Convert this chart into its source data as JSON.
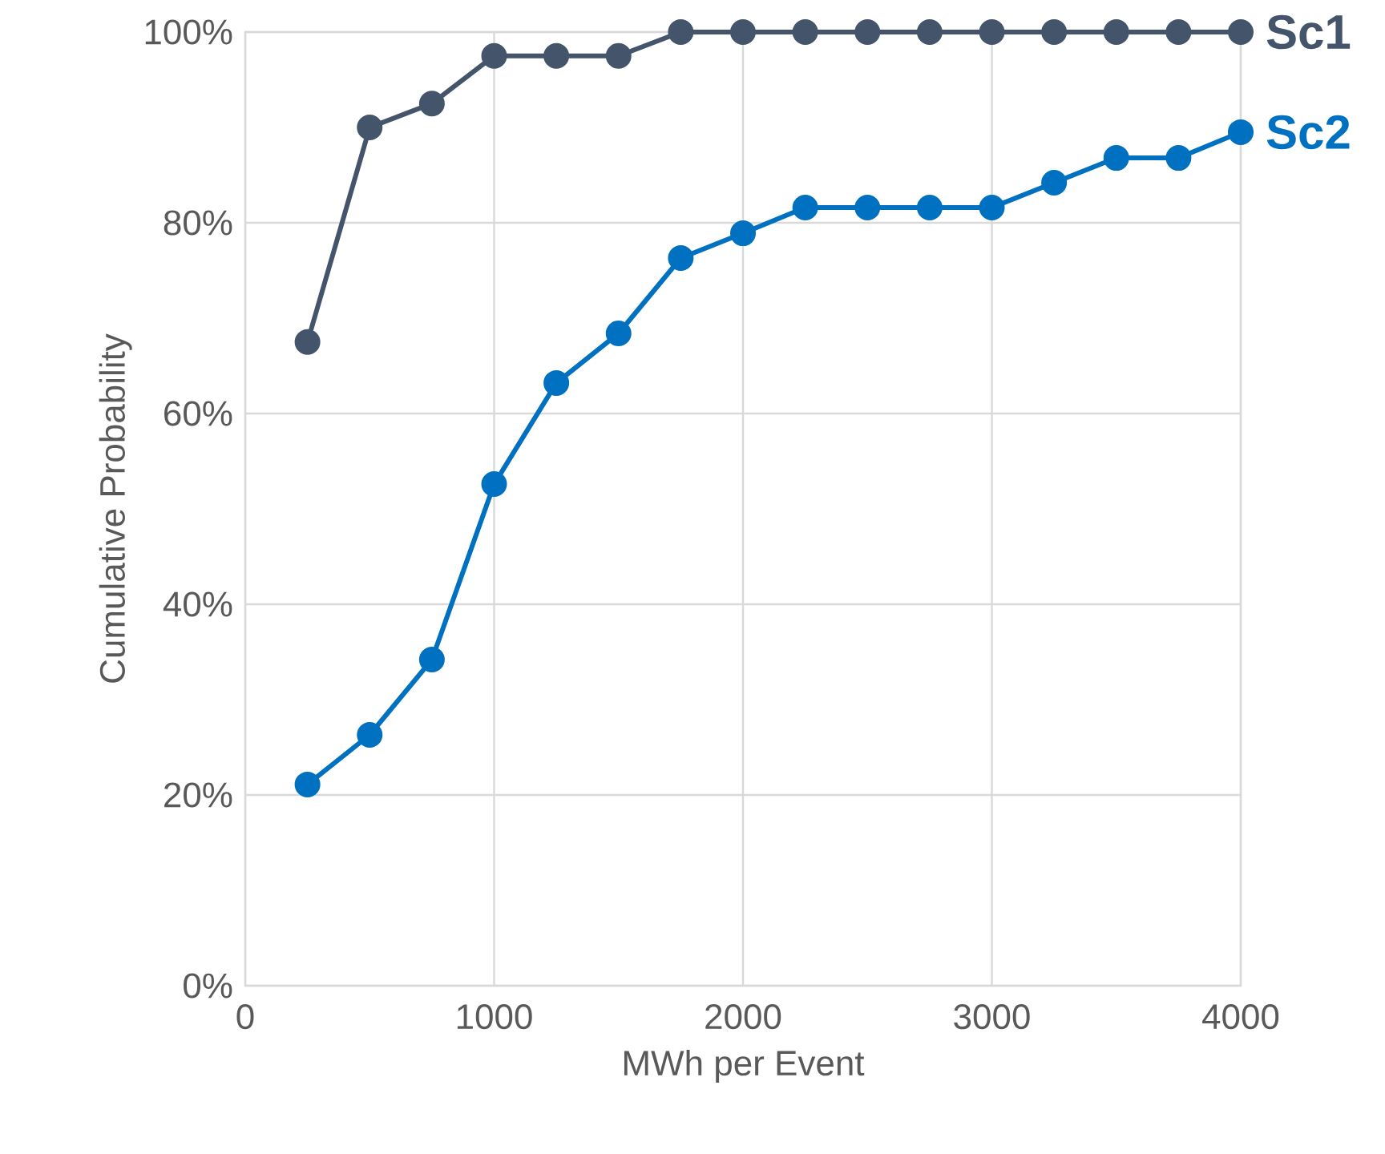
{
  "chart_data": {
    "type": "line",
    "xlabel": "MWh per Event",
    "ylabel": "Cumulative Probability",
    "x": [
      250,
      500,
      750,
      1000,
      1250,
      1500,
      1750,
      2000,
      2250,
      2500,
      2750,
      3000,
      3250,
      3500,
      3750,
      4000
    ],
    "series": [
      {
        "name": "Sc1",
        "color": "#44546a",
        "values": [
          67.5,
          90,
          92.5,
          97.5,
          97.5,
          97.5,
          100,
          100,
          100,
          100,
          100,
          100,
          100,
          100,
          100,
          100
        ]
      },
      {
        "name": "Sc2",
        "color": "#0070c0",
        "values": [
          21.1,
          26.3,
          34.2,
          52.6,
          63.2,
          68.4,
          76.3,
          78.9,
          81.6,
          81.6,
          81.6,
          81.6,
          84.2,
          86.8,
          86.8,
          89.5
        ]
      }
    ],
    "xlim": [
      0,
      4000
    ],
    "xticks": [
      0,
      1000,
      2000,
      3000,
      4000
    ],
    "ylim": [
      0,
      100
    ],
    "yticks": [
      {
        "value": 0,
        "label": "0%"
      },
      {
        "value": 20,
        "label": "20%"
      },
      {
        "value": 40,
        "label": "40%"
      },
      {
        "value": 60,
        "label": "60%"
      },
      {
        "value": 80,
        "label": "80%"
      },
      {
        "value": 100,
        "label": "100%"
      }
    ],
    "grid": true,
    "marker": "circle",
    "line_style": "solid"
  }
}
